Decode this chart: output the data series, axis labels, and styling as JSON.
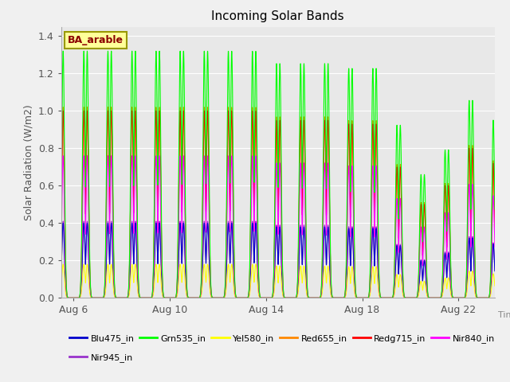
{
  "title": "Incoming Solar Bands",
  "xlabel": "Time",
  "ylabel": "Solar Radiation (W/m2)",
  "annotation": "BA_arable",
  "ylim": [
    0,
    1.45
  ],
  "background_color": "#f0f0f0",
  "plot_bg_color": "#e8e8e8",
  "series": [
    {
      "name": "Blu475_in",
      "color": "#0000cc",
      "lw": 0.8
    },
    {
      "name": "Grn535_in",
      "color": "#00ff00",
      "lw": 0.8
    },
    {
      "name": "Yel580_in",
      "color": "#ffff00",
      "lw": 0.8
    },
    {
      "name": "Red655_in",
      "color": "#ff8800",
      "lw": 0.8
    },
    {
      "name": "Redg715_in",
      "color": "#ff0000",
      "lw": 0.8
    },
    {
      "name": "Nir840_in",
      "color": "#ff00ff",
      "lw": 0.8
    },
    {
      "name": "Nir945_in",
      "color": "#9933cc",
      "lw": 0.8
    }
  ],
  "xtick_labels": [
    "Aug 6",
    "Aug 10",
    "Aug 14",
    "Aug 18",
    "Aug 22"
  ],
  "ytick_labels": [
    "0.0",
    "0.2",
    "0.4",
    "0.6",
    "0.8",
    "1.0",
    "1.2",
    "1.4"
  ],
  "ytick_values": [
    0.0,
    0.2,
    0.4,
    0.6,
    0.8,
    1.0,
    1.2,
    1.4
  ],
  "num_days": 19,
  "peak_scales": {
    "Blu475_in": 0.4,
    "Grn535_in": 1.32,
    "Yel580_in": 0.18,
    "Red655_in": 1.02,
    "Redg715_in": 1.0,
    "Nir840_in": 0.76,
    "Nir945_in": 0.41
  },
  "day_peaks": [
    1.0,
    1.0,
    1.0,
    1.0,
    1.0,
    1.0,
    1.0,
    1.0,
    1.0,
    0.95,
    0.95,
    0.95,
    0.93,
    0.93,
    0.7,
    0.5,
    0.6,
    0.8,
    0.72
  ],
  "legend_names": [
    "Blu475_in",
    "Grn535_in",
    "Yel580_in",
    "Red655_in",
    "Redg715_in",
    "Nir840_in",
    "Nir945_in"
  ]
}
